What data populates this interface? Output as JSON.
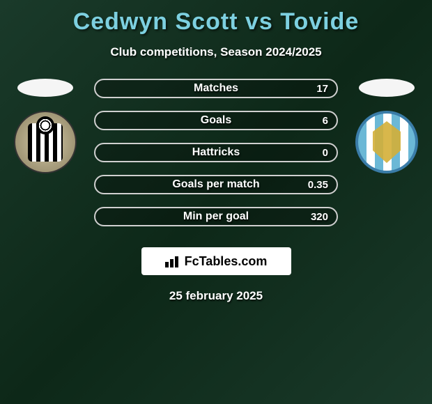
{
  "title": "Cedwyn Scott vs Tovide",
  "subtitle": "Club competitions, Season 2024/2025",
  "date": "25 february 2025",
  "branding": "FcTables.com",
  "colors": {
    "title_color": "#7dd0e0",
    "text_color": "#ffffff",
    "bg_gradient_start": "#1a3a2a",
    "bg_gradient_mid": "#0d2818",
    "row_border": "#d0d0d0",
    "brand_bg": "#ffffff"
  },
  "left_team": {
    "name": "notts-county",
    "crest_bg": "#d4c9a8"
  },
  "right_team": {
    "name": "colchester-united",
    "crest_border": "#3a7ca8",
    "crest_stripe": "#6bb8d6"
  },
  "stats": [
    {
      "label": "Matches",
      "right_value": "17"
    },
    {
      "label": "Goals",
      "right_value": "6"
    },
    {
      "label": "Hattricks",
      "right_value": "0"
    },
    {
      "label": "Goals per match",
      "right_value": "0.35"
    },
    {
      "label": "Min per goal",
      "right_value": "320"
    }
  ],
  "typography": {
    "title_fontsize": 34,
    "subtitle_fontsize": 17,
    "stat_label_fontsize": 16,
    "stat_value_fontsize": 15
  }
}
